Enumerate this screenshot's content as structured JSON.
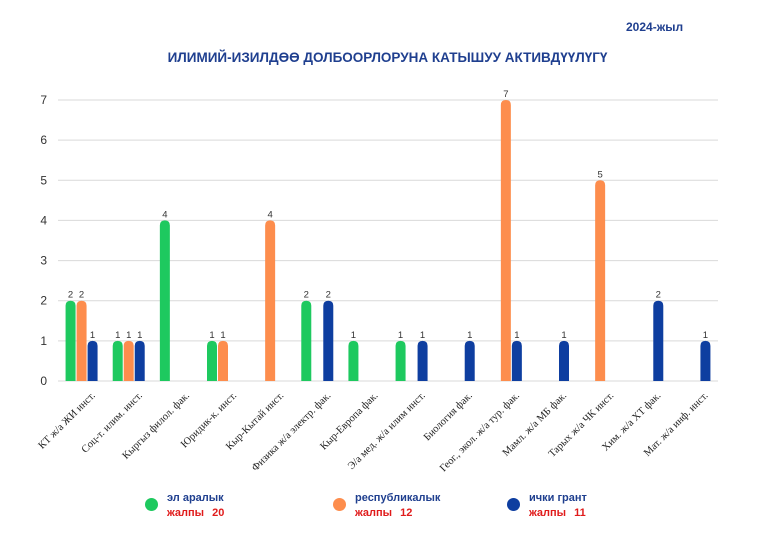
{
  "header": {
    "year": "2024-жыл",
    "title": "ИЛИМИЙ-ИЗИЛДӨӨ ДОЛБООРЛОРУНА КАТЫШУУ АКТИВДҮҮЛҮГҮ"
  },
  "chart_data": {
    "type": "bar",
    "title": "ИЛИМИЙ-ИЗИЛДӨӨ ДОЛБООРЛОРУНА КАТЫШУУ АКТИВДҮҮЛҮГҮ",
    "xlabel": "",
    "ylabel": "",
    "ylim": [
      0,
      7
    ],
    "yticks": [
      0,
      1,
      2,
      3,
      4,
      5,
      6,
      7
    ],
    "grid": true,
    "categories": [
      "КТ ж/а ЖИ инст.",
      "Соц-т. илим. инст.",
      "Кыргыз филол. фак.",
      "Юридик-к. инст.",
      "Кыр-Кытай инст.",
      "Физика ж/а электр. фак.",
      "Кыр-Европа фак.",
      "Э/а мед. ж/а илим инст.",
      "Биология фак.",
      "Геог., экол. ж/а тур. фак.",
      "Мамл. ж/а МБ фак.",
      "Тарых ж/а ЧК инст.",
      "Хим. ж/а ХТ фак.",
      "Мат. ж/а инф. инст."
    ],
    "series": [
      {
        "name": "эл аралык",
        "color": "#1ec95f",
        "values": [
          2,
          1,
          4,
          1,
          null,
          2,
          1,
          1,
          null,
          null,
          null,
          null,
          null,
          null
        ]
      },
      {
        "name": "республикалык",
        "color": "#fd8d4d",
        "values": [
          2,
          1,
          null,
          1,
          4,
          null,
          null,
          null,
          null,
          7,
          null,
          5,
          null,
          null
        ]
      },
      {
        "name": "ички грант",
        "color": "#0e3ea0",
        "values": [
          1,
          1,
          null,
          null,
          null,
          2,
          null,
          1,
          1,
          1,
          1,
          null,
          2,
          1
        ]
      }
    ],
    "legend_position": "bottom",
    "totals": [
      {
        "label": "жалпы",
        "value": "20"
      },
      {
        "label": "жалпы",
        "value": "12"
      },
      {
        "label": "жалпы",
        "value": "11"
      }
    ]
  }
}
